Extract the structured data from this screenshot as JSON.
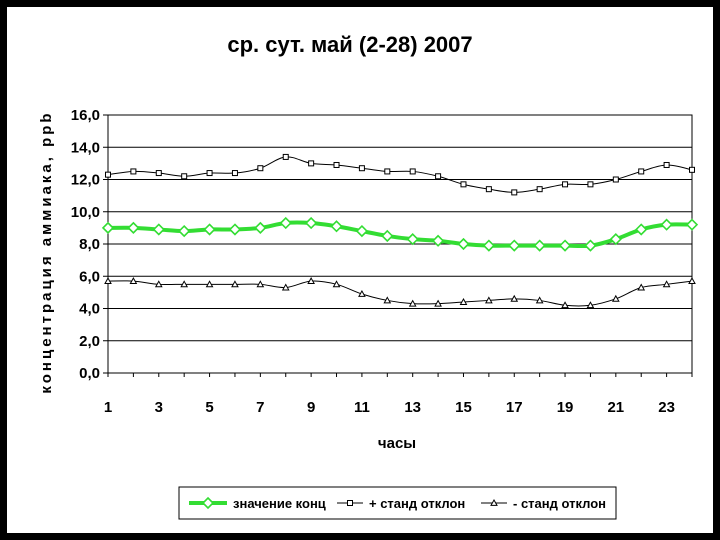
{
  "chart_data": {
    "type": "line",
    "title": "ср. сут. май (2-28) 2007",
    "xlabel": "часы",
    "ylabel": "концентрация аммиака, ppb",
    "x": [
      1,
      2,
      3,
      4,
      5,
      6,
      7,
      8,
      9,
      10,
      11,
      12,
      13,
      14,
      15,
      16,
      17,
      18,
      19,
      20,
      21,
      22,
      23,
      24
    ],
    "x_tick_labels": [
      "1",
      "3",
      "5",
      "7",
      "9",
      "11",
      "13",
      "15",
      "17",
      "19",
      "21",
      "23"
    ],
    "y_tick_labels": [
      "0,0",
      "2,0",
      "4,0",
      "6,0",
      "8,0",
      "10,0",
      "12,0",
      "14,0",
      "16,0"
    ],
    "xlim": [
      1,
      24
    ],
    "ylim": [
      0,
      16
    ],
    "grid": "horizontal",
    "legend_position": "bottom",
    "series": [
      {
        "name": "значение конц",
        "color": "#33dd33",
        "marker": "diamond",
        "values": [
          9.0,
          9.0,
          8.9,
          8.8,
          8.9,
          8.9,
          9.0,
          9.3,
          9.3,
          9.1,
          8.8,
          8.5,
          8.3,
          8.2,
          8.0,
          7.9,
          7.9,
          7.9,
          7.9,
          7.9,
          8.3,
          8.9,
          9.2,
          9.2
        ]
      },
      {
        "name": "+ станд отклон",
        "color": "#000000",
        "marker": "square",
        "values": [
          12.3,
          12.5,
          12.4,
          12.2,
          12.4,
          12.4,
          12.7,
          13.4,
          13.0,
          12.9,
          12.7,
          12.5,
          12.5,
          12.2,
          11.7,
          11.4,
          11.2,
          11.4,
          11.7,
          11.7,
          12.0,
          12.5,
          12.9,
          12.6
        ]
      },
      {
        "name": "- станд отклон",
        "color": "#000000",
        "marker": "triangle",
        "values": [
          5.7,
          5.7,
          5.5,
          5.5,
          5.5,
          5.5,
          5.5,
          5.3,
          5.7,
          5.5,
          4.9,
          4.5,
          4.3,
          4.3,
          4.4,
          4.5,
          4.6,
          4.5,
          4.2,
          4.2,
          4.6,
          5.3,
          5.5,
          5.7
        ]
      }
    ]
  }
}
